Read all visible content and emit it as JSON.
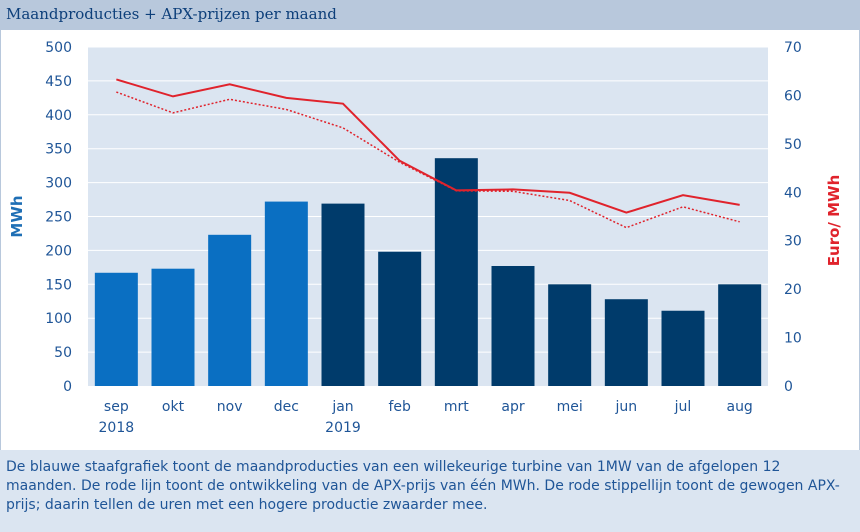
{
  "title": "Maandproducties + APX-prijzen per maand",
  "caption": "De blauwe staafgrafiek toont de maandproducties van een willekeurige turbine van 1MW van de afgelopen 12 maanden. De rode lijn toont de ontwikkeling van de APX-prijs van één MWh. De rode stippellijn toont de gewogen APX-prijs; daarin tellen de uren met een hogere productie zwaarder mee.",
  "colors": {
    "bar_light": "#0a6fc2",
    "bar_dark": "#003b6b",
    "line_red": "#e0232c",
    "plot_bg": "#dbe5f1",
    "grid": "#ffffff",
    "left_axis_text": "#1f6fb5",
    "right_axis_text": "#e0232c",
    "tick_text": "#1f5597"
  },
  "chart_data": {
    "type": "bar",
    "categories": [
      "sep 2018",
      "okt",
      "nov",
      "dec",
      "jan 2019",
      "feb",
      "mrt",
      "apr",
      "mei",
      "jun",
      "jul",
      "aug"
    ],
    "category_lines": [
      [
        "sep",
        "2018"
      ],
      [
        "okt"
      ],
      [
        "nov"
      ],
      [
        "dec"
      ],
      [
        "jan",
        "2019"
      ],
      [
        "feb"
      ],
      [
        "mrt"
      ],
      [
        "apr"
      ],
      [
        "mei"
      ],
      [
        "jun"
      ],
      [
        "jul"
      ],
      [
        "aug"
      ]
    ],
    "ylabel": "MWh",
    "y2label": "Euro/ MWh",
    "ylim": [
      0,
      500
    ],
    "y2lim": [
      0,
      70
    ],
    "yticks": [
      0,
      50,
      100,
      150,
      200,
      250,
      300,
      350,
      400,
      450,
      500
    ],
    "y2ticks": [
      0,
      10,
      20,
      30,
      40,
      50,
      60,
      70
    ],
    "grid": true,
    "series": [
      {
        "type": "bar",
        "axis": "left",
        "values": [
          167,
          173,
          223,
          272,
          269,
          198,
          336,
          177,
          150,
          128,
          111,
          150
        ],
        "colors": [
          "bar_light",
          "bar_light",
          "bar_light",
          "bar_light",
          "bar_dark",
          "bar_dark",
          "bar_dark",
          "bar_dark",
          "bar_dark",
          "bar_dark",
          "bar_dark",
          "bar_dark"
        ]
      },
      {
        "type": "line",
        "axis": "right",
        "style": "solid",
        "values": [
          63.3,
          59.8,
          62.3,
          59.5,
          58.3,
          46.5,
          40.4,
          40.6,
          39.9,
          35.8,
          39.4,
          37.4
        ]
      },
      {
        "type": "line",
        "axis": "right",
        "style": "dotted",
        "values": [
          60.7,
          56.4,
          59.2,
          57.1,
          53.3,
          46.2,
          40.3,
          40.2,
          38.3,
          32.7,
          37.0,
          33.9
        ]
      }
    ]
  }
}
